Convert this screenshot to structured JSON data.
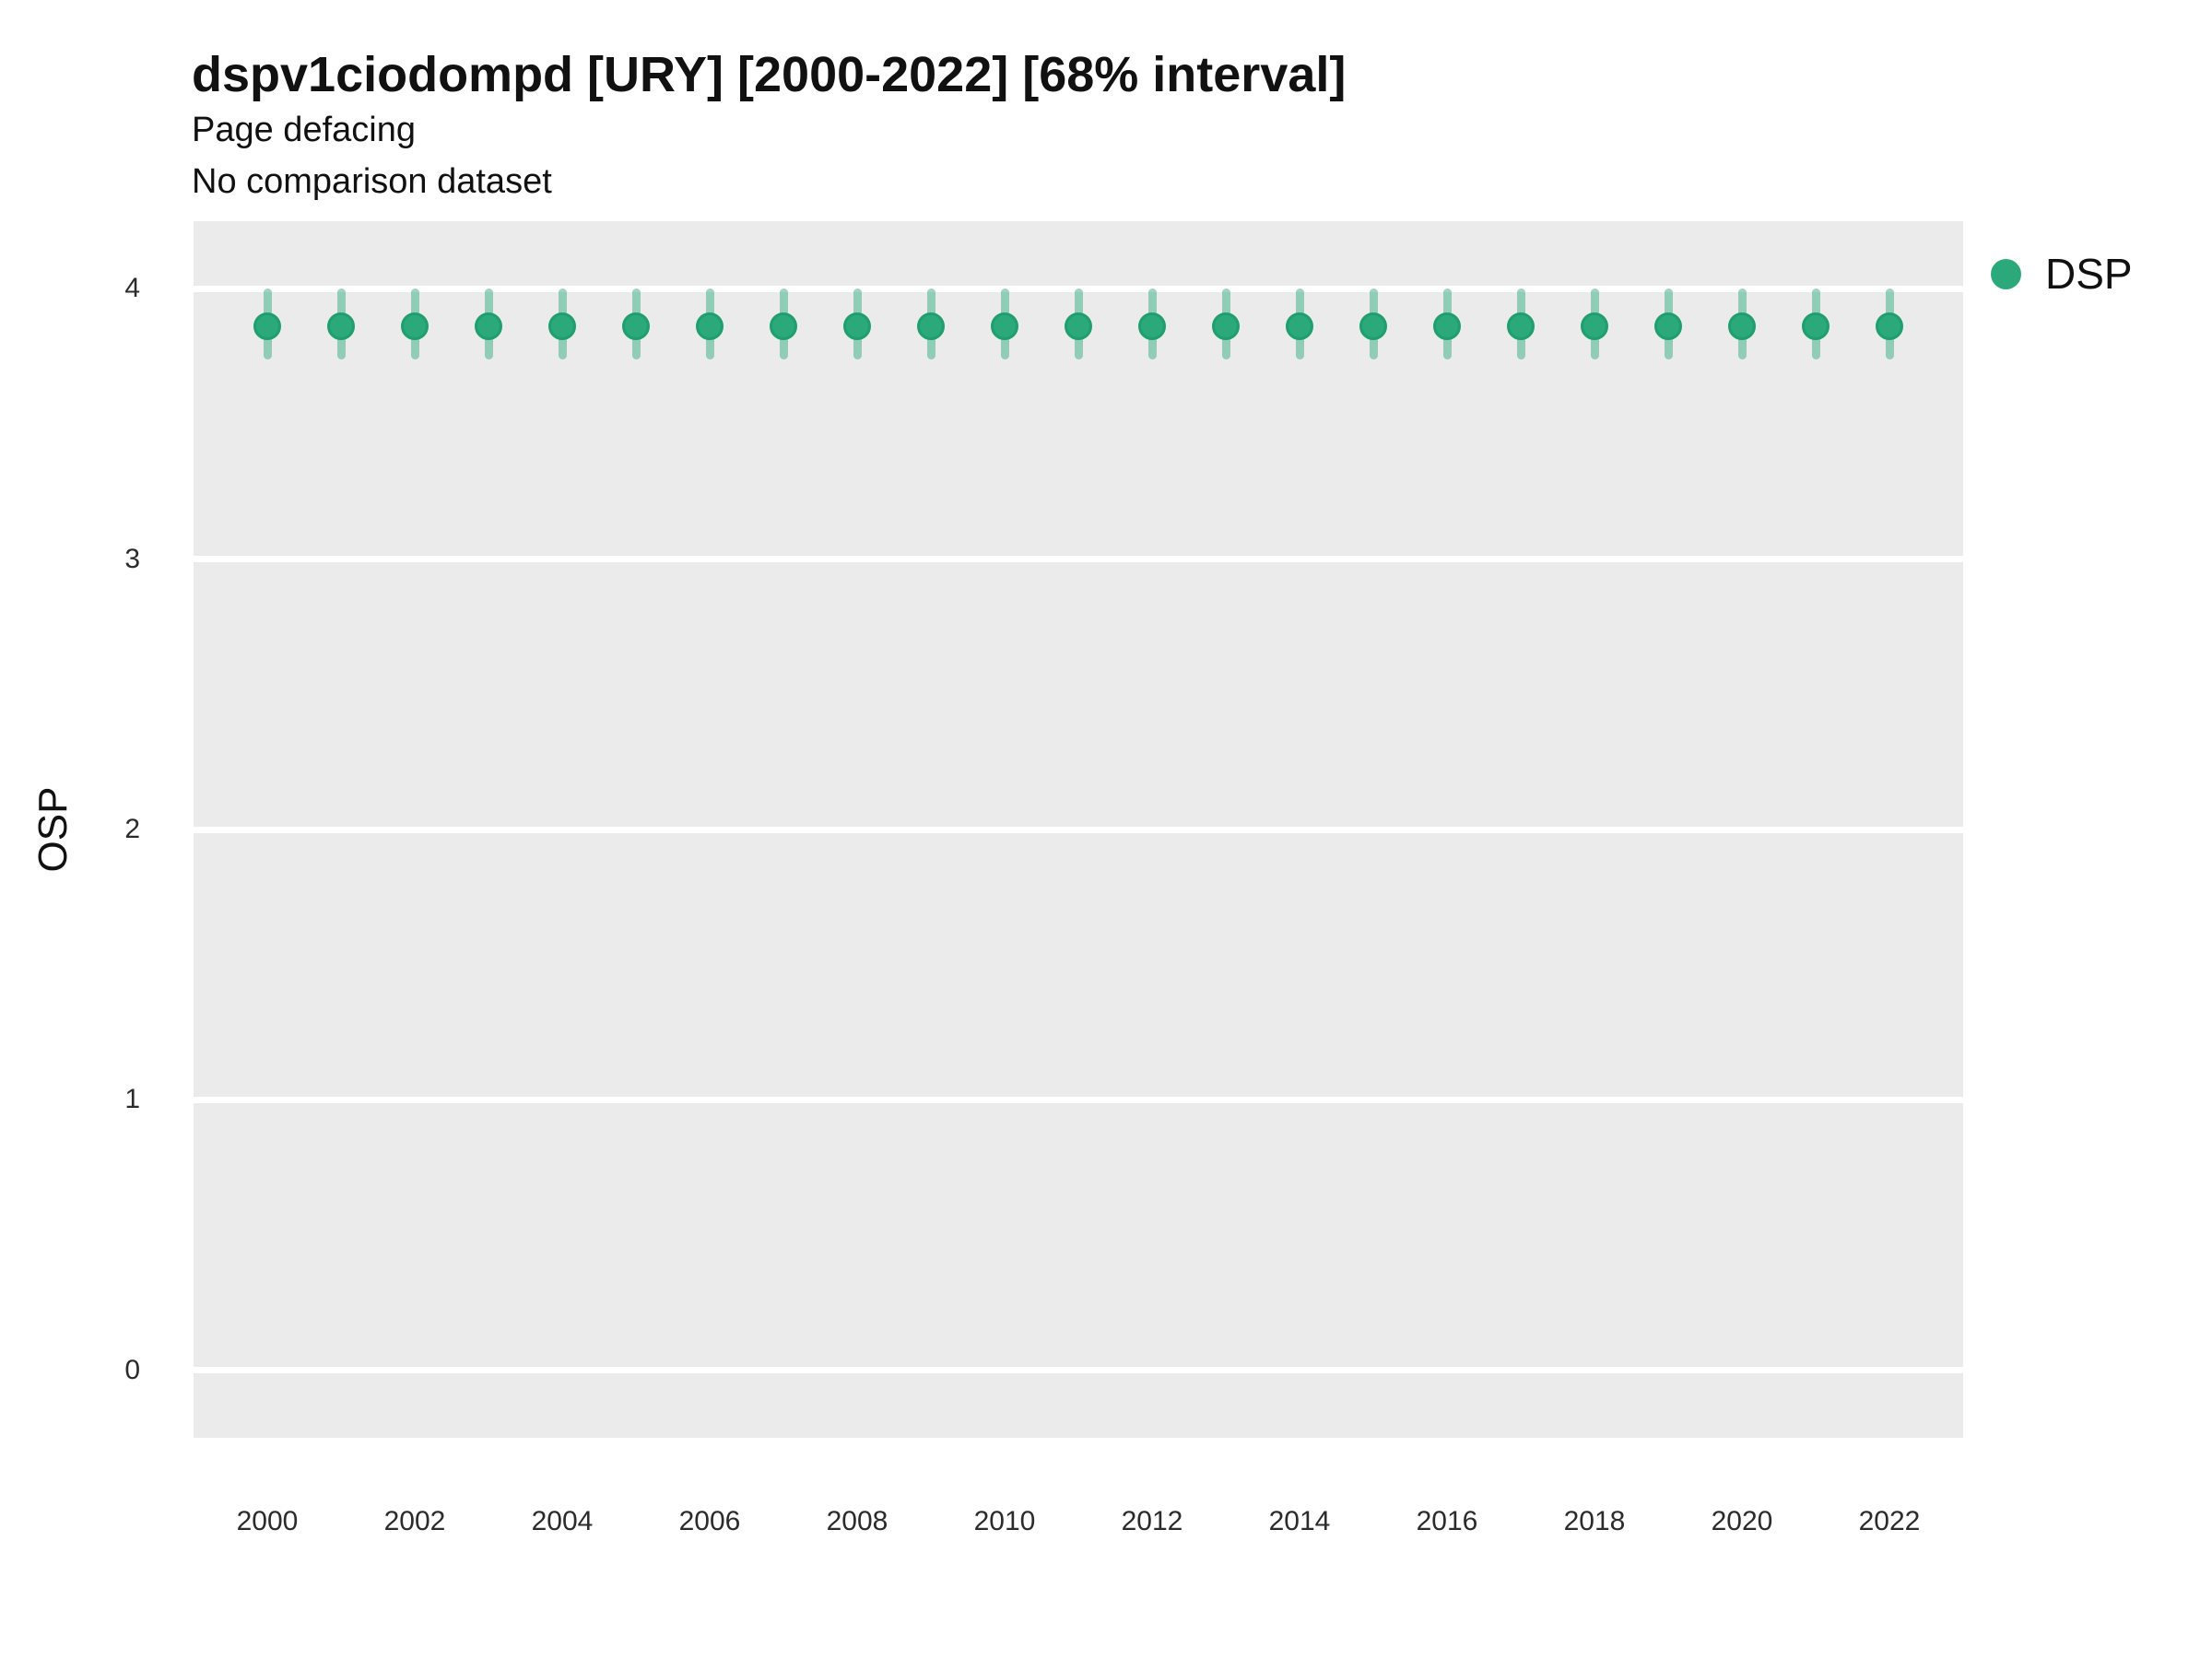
{
  "header": {
    "title": "dspv1ciodompd [URY] [2000-2022] [68% interval]",
    "subtitle": "Page defacing",
    "note": "No comparison dataset"
  },
  "axes": {
    "y_label": "OSP",
    "y_tick_labels": [
      "0",
      "1",
      "2",
      "3",
      "4"
    ],
    "x_tick_labels": [
      "2000",
      "2002",
      "2004",
      "2006",
      "2008",
      "2010",
      "2012",
      "2014",
      "2016",
      "2018",
      "2020",
      "2022"
    ]
  },
  "legend": {
    "position": "right",
    "items": [
      {
        "label": "DSP",
        "swatch_color": "#2CA97B"
      }
    ]
  },
  "colors": {
    "panel_bg": "#EBEBEB",
    "gridline": "#FFFFFF",
    "point_fill": "#2CA97B",
    "point_stroke": "#1F9E6E",
    "interval_bar": "rgba(44,169,123,0.48)",
    "title_text": "#111111",
    "axis_text": "#2B2B2B"
  },
  "chart_data": {
    "type": "scatter",
    "title": "dspv1ciodompd [URY] [2000-2022] [68% interval]",
    "subtitle": "Page defacing",
    "annotation": "No comparison dataset",
    "xlabel": "",
    "ylabel": "OSP",
    "xlim": [
      1999,
      2023
    ],
    "ylim": [
      -0.25,
      4.25
    ],
    "x_tick_values": [
      2000,
      2002,
      2004,
      2006,
      2008,
      2010,
      2012,
      2014,
      2016,
      2018,
      2020,
      2022
    ],
    "y_tick_values": [
      0,
      1,
      2,
      3,
      4
    ],
    "grid": "horizontal-major-only",
    "legend_position": "right",
    "interval_label": "68% interval",
    "series": [
      {
        "name": "DSP",
        "marker": "circle-with-vertical-interval-bar",
        "x": [
          2000,
          2001,
          2002,
          2003,
          2004,
          2005,
          2006,
          2007,
          2008,
          2009,
          2010,
          2011,
          2012,
          2013,
          2014,
          2015,
          2016,
          2017,
          2018,
          2019,
          2020,
          2021,
          2022
        ],
        "y": [
          3.86,
          3.86,
          3.86,
          3.86,
          3.86,
          3.86,
          3.86,
          3.86,
          3.86,
          3.86,
          3.86,
          3.86,
          3.86,
          3.86,
          3.86,
          3.86,
          3.86,
          3.86,
          3.86,
          3.86,
          3.86,
          3.86,
          3.86
        ],
        "y_low": [
          3.74,
          3.74,
          3.74,
          3.74,
          3.74,
          3.74,
          3.74,
          3.74,
          3.74,
          3.74,
          3.74,
          3.74,
          3.74,
          3.74,
          3.74,
          3.74,
          3.74,
          3.74,
          3.74,
          3.74,
          3.74,
          3.74,
          3.74
        ],
        "y_high": [
          4.0,
          4.0,
          4.0,
          4.0,
          4.0,
          4.0,
          4.0,
          4.0,
          4.0,
          4.0,
          4.0,
          4.0,
          4.0,
          4.0,
          4.0,
          4.0,
          4.0,
          4.0,
          4.0,
          4.0,
          4.0,
          4.0,
          4.0
        ]
      }
    ]
  }
}
